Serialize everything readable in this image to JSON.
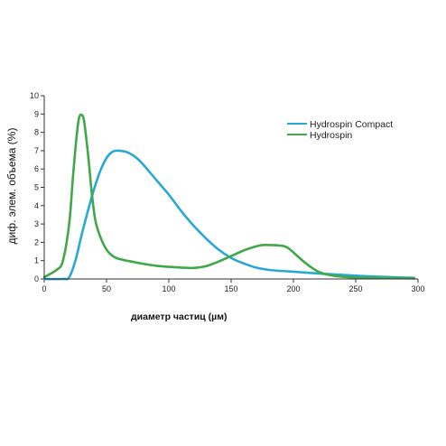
{
  "chart_data": {
    "type": "line",
    "xlabel": "диаметр частиц (µм)",
    "ylabel": "диф. элем. объема (%)",
    "xlim": [
      0,
      300
    ],
    "ylim": [
      0,
      10
    ],
    "x_ticks": [
      "0",
      "50",
      "100",
      "150",
      "200",
      "250",
      "300"
    ],
    "y_ticks": [
      "0",
      "1",
      "2",
      "3",
      "4",
      "5",
      "6",
      "7",
      "8",
      "9",
      "10"
    ],
    "grid": false,
    "legend_position": "top-right",
    "series": [
      {
        "name": "Hydrospin Compact",
        "color": "#29a8d4",
        "x": [
          0,
          15,
          20,
          25,
          30,
          35,
          40,
          45,
          50,
          55,
          60,
          65,
          70,
          75,
          80,
          90,
          100,
          110,
          120,
          130,
          140,
          150,
          160,
          170,
          180,
          190,
          200,
          210,
          220,
          230,
          240,
          250,
          260,
          270,
          280,
          290,
          297
        ],
        "y": [
          0.0,
          0.0,
          0.1,
          1.0,
          2.4,
          3.7,
          4.9,
          5.9,
          6.6,
          6.95,
          7.0,
          6.95,
          6.8,
          6.55,
          6.2,
          5.4,
          4.6,
          3.7,
          2.9,
          2.2,
          1.6,
          1.15,
          0.85,
          0.62,
          0.5,
          0.44,
          0.4,
          0.35,
          0.3,
          0.26,
          0.22,
          0.18,
          0.15,
          0.12,
          0.1,
          0.08,
          0.06
        ]
      },
      {
        "name": "Hydrospin",
        "color": "#3fa84a",
        "x": [
          0,
          10,
          15,
          20,
          23,
          26,
          28,
          30,
          32,
          35,
          38,
          41,
          45,
          50,
          55,
          60,
          70,
          80,
          90,
          100,
          110,
          120,
          130,
          140,
          150,
          160,
          170,
          175,
          180,
          190,
          195,
          200,
          210,
          220,
          230,
          240,
          250,
          260,
          270,
          280,
          290,
          297
        ],
        "y": [
          0.1,
          0.5,
          1.0,
          3.0,
          5.5,
          7.8,
          8.8,
          8.95,
          8.6,
          6.9,
          4.8,
          3.2,
          2.3,
          1.6,
          1.25,
          1.1,
          0.95,
          0.82,
          0.72,
          0.66,
          0.62,
          0.6,
          0.7,
          0.95,
          1.25,
          1.55,
          1.78,
          1.85,
          1.85,
          1.82,
          1.72,
          1.45,
          0.85,
          0.4,
          0.2,
          0.12,
          0.08,
          0.06,
          0.05,
          0.04,
          0.04,
          0.03
        ]
      }
    ]
  }
}
